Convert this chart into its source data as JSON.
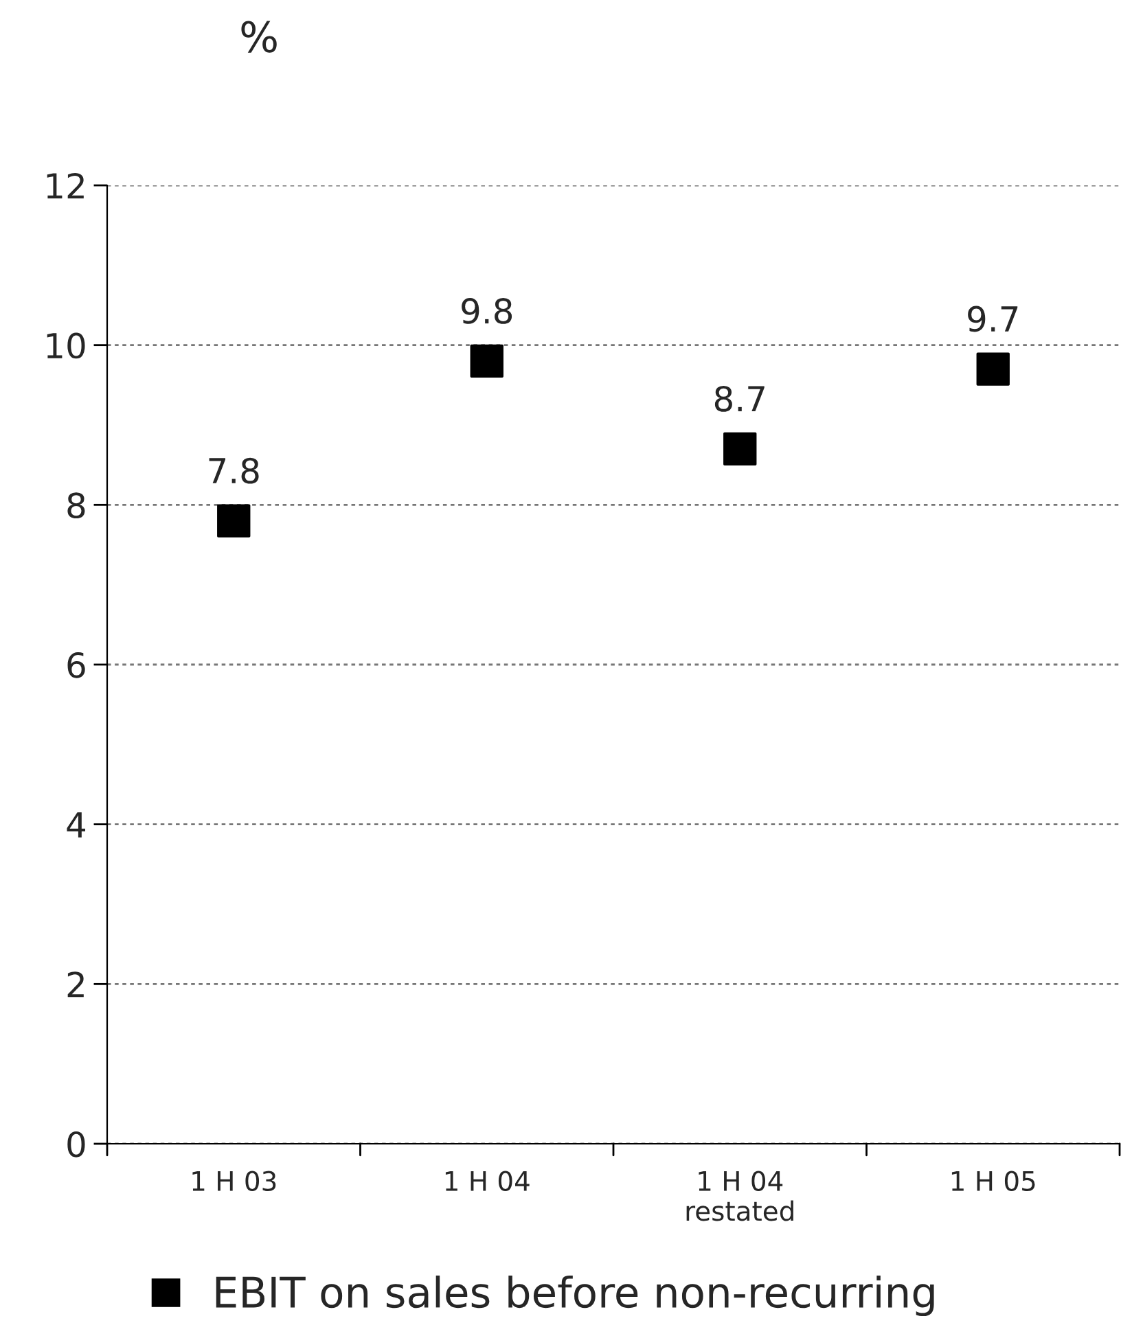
{
  "chart_data": {
    "type": "scatter",
    "ylabel": "%",
    "categories": [
      "1 H 03",
      "1 H 04",
      "1 H 04\nrestated",
      "1 H 05"
    ],
    "series": [
      {
        "name": "EBIT on sales before non-recurring",
        "color": "#000000",
        "values": [
          7.8,
          9.8,
          8.7,
          9.7
        ]
      }
    ],
    "ylim": [
      0,
      12
    ],
    "yticks": [
      0,
      2,
      4,
      6,
      8,
      10,
      12
    ],
    "grid": "y",
    "legend": "bottom",
    "marker": "square",
    "data_labels": true
  }
}
